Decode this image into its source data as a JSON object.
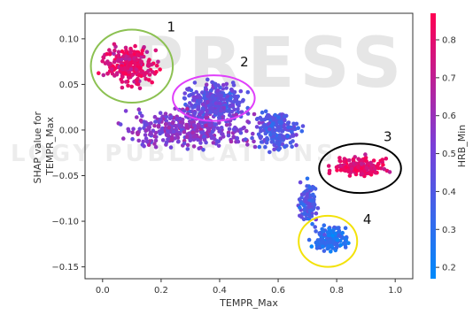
{
  "chart_data": {
    "type": "scatter",
    "xlabel": "TEMPR_Max",
    "ylabel": "SHAP value for\nTEMPR_Max",
    "colorbar_label": "HRB_Min",
    "xlim": [
      -0.06,
      1.06
    ],
    "ylim": [
      -0.163,
      0.128
    ],
    "xticks": [
      0.0,
      0.2,
      0.4,
      0.6,
      0.8,
      1.0
    ],
    "xtick_labels": [
      "0.0",
      "0.2",
      "0.4",
      "0.6",
      "0.8",
      "1.0"
    ],
    "yticks": [
      0.1,
      0.05,
      0.0,
      -0.05,
      -0.1,
      -0.15
    ],
    "ytick_labels": [
      "0.10",
      "0.05",
      "0.00",
      "−0.05",
      "−0.10",
      "−0.15"
    ],
    "colorbar_range": [
      0.17,
      0.87
    ],
    "colorbar_ticks": [
      0.8,
      0.7,
      0.6,
      0.5,
      0.4,
      0.3,
      0.2
    ],
    "colorbar_tick_labels": [
      "0.8",
      "0.7",
      "0.6",
      "0.5",
      "0.4",
      "0.3",
      "0.2"
    ],
    "colormap": [
      "#008afb",
      "#7a3fd8",
      "#ff0052"
    ],
    "grid": false,
    "watermark": "PRESS",
    "watermark_sub": "LOGY PUBLICATIONS",
    "point_clusters": [
      {
        "x_center": 0.1,
        "y_center": 0.07,
        "x_spread": 0.12,
        "y_spread": 0.028,
        "color_value": 0.78,
        "count": 260
      },
      {
        "x_center": 0.38,
        "y_center": 0.03,
        "x_spread": 0.14,
        "y_spread": 0.03,
        "color_value": 0.45,
        "count": 320
      },
      {
        "x_center": 0.3,
        "y_center": 0.0,
        "x_spread": 0.3,
        "y_spread": 0.028,
        "color_value": 0.55,
        "count": 380
      },
      {
        "x_center": 0.6,
        "y_center": 0.0,
        "x_spread": 0.1,
        "y_spread": 0.03,
        "color_value": 0.4,
        "count": 200
      },
      {
        "x_center": 0.88,
        "y_center": -0.04,
        "x_spread": 0.14,
        "y_spread": 0.015,
        "color_value": 0.8,
        "count": 140
      },
      {
        "x_center": 0.7,
        "y_center": -0.08,
        "x_spread": 0.04,
        "y_spread": 0.03,
        "color_value": 0.4,
        "count": 120
      },
      {
        "x_center": 0.78,
        "y_center": -0.12,
        "x_spread": 0.08,
        "y_spread": 0.018,
        "color_value": 0.3,
        "count": 160
      }
    ],
    "annotations": [
      {
        "label": "1",
        "ellipse_center": [
          0.1,
          0.07
        ],
        "ellipse_radii": [
          0.14,
          0.04
        ],
        "color": "#8cc152",
        "label_pos": [
          0.22,
          0.108
        ]
      },
      {
        "label": "2",
        "ellipse_center": [
          0.38,
          0.035
        ],
        "ellipse_radii": [
          0.14,
          0.025
        ],
        "color": "#e040fb",
        "label_pos": [
          0.47,
          0.07
        ]
      },
      {
        "label": "3",
        "ellipse_center": [
          0.88,
          -0.042
        ],
        "ellipse_radii": [
          0.14,
          0.027
        ],
        "color": "#000000",
        "label_pos": [
          0.96,
          -0.012
        ]
      },
      {
        "label": "4",
        "ellipse_center": [
          0.77,
          -0.122
        ],
        "ellipse_radii": [
          0.1,
          0.028
        ],
        "color": "#f3e20a",
        "label_pos": [
          0.89,
          -0.103
        ]
      }
    ]
  }
}
